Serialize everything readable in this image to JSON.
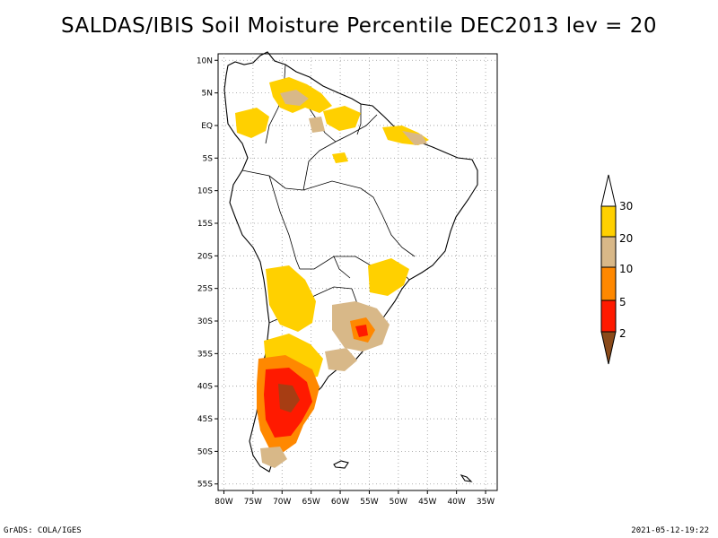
{
  "title": "SALDAS/IBIS Soil Moisture Percentile DEC2013 lev = 20",
  "footer": {
    "left": "GrADS: COLA/IGES",
    "right": "2021-05-12-19:22"
  },
  "map": {
    "lat_labels": [
      "10N",
      "5N",
      "EQ",
      "5S",
      "10S",
      "15S",
      "20S",
      "25S",
      "30S",
      "35S",
      "40S",
      "45S",
      "50S",
      "55S"
    ],
    "lat_values": [
      10,
      5,
      0,
      -5,
      -10,
      -15,
      -20,
      -25,
      -30,
      -35,
      -40,
      -45,
      -50,
      -55
    ],
    "lon_labels": [
      "80W",
      "75W",
      "70W",
      "65W",
      "60W",
      "55W",
      "50W",
      "45W",
      "40W",
      "35W"
    ],
    "lon_values": [
      -80,
      -75,
      -70,
      -65,
      -60,
      -55,
      -50,
      -45,
      -40,
      -35
    ],
    "lat_range": [
      -56,
      11
    ],
    "lon_range": [
      -81,
      -33
    ]
  },
  "legend": {
    "labels": [
      "30",
      "20",
      "10",
      "5",
      "2"
    ],
    "colors": {
      "above_30": "#ffffff",
      "20_30": "#ffd000",
      "10_20": "#d8b888",
      "5_10": "#ff8800",
      "2_5": "#ff1a00",
      "below_2": "#8a4a1a"
    }
  }
}
